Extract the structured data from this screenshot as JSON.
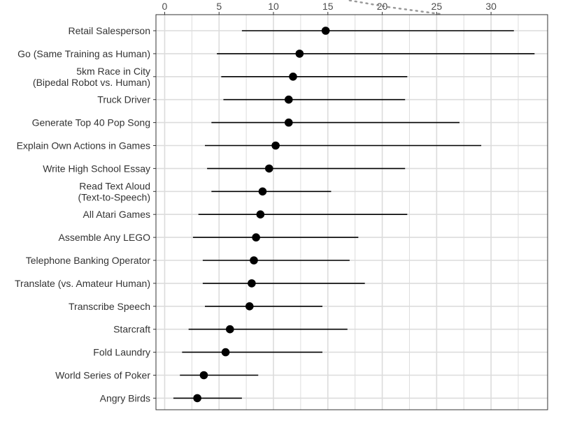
{
  "chart_data": {
    "type": "dot-interval",
    "title": "",
    "xlabel": "",
    "ylabel": "",
    "xlim": [
      -0.8,
      35.2
    ],
    "x_ticks": [
      0,
      5,
      10,
      15,
      20,
      25,
      30
    ],
    "grid": true,
    "legend": "none",
    "colors": {
      "point": "#000000",
      "interval": "#000000",
      "grid": "#dcdcdc",
      "frame": "#333333",
      "dotted": "#999999"
    },
    "annotation_dotted_line": [
      [
        17.0,
        35.4
      ],
      [
        20.6,
        33.8
      ],
      [
        25.5,
        32.1
      ]
    ],
    "rows": [
      {
        "label_lines": [
          "Retail Salesperson"
        ],
        "point": 14.8,
        "low": 7.1,
        "high": 32.1
      },
      {
        "label_lines": [
          "Go (Same Training as Human)"
        ],
        "point": 12.4,
        "low": 4.8,
        "high": 34.0
      },
      {
        "label_lines": [
          "5km Race in City",
          "(Bipedal Robot vs. Human)"
        ],
        "point": 11.8,
        "low": 5.2,
        "high": 22.3
      },
      {
        "label_lines": [
          "Truck Driver"
        ],
        "point": 11.4,
        "low": 5.4,
        "high": 22.1
      },
      {
        "label_lines": [
          "Generate Top 40 Pop Song"
        ],
        "point": 11.4,
        "low": 4.3,
        "high": 27.1
      },
      {
        "label_lines": [
          "Explain Own Actions in Games"
        ],
        "point": 10.2,
        "low": 3.7,
        "high": 29.1
      },
      {
        "label_lines": [
          "Write High School Essay"
        ],
        "point": 9.6,
        "low": 3.9,
        "high": 22.1
      },
      {
        "label_lines": [
          "Read Text Aloud",
          "(Text-to-Speech)"
        ],
        "point": 9.0,
        "low": 4.3,
        "high": 15.3
      },
      {
        "label_lines": [
          "All Atari Games"
        ],
        "point": 8.8,
        "low": 3.1,
        "high": 22.3
      },
      {
        "label_lines": [
          "Assemble Any LEGO"
        ],
        "point": 8.4,
        "low": 2.6,
        "high": 17.8
      },
      {
        "label_lines": [
          "Telephone Banking Operator"
        ],
        "point": 8.2,
        "low": 3.5,
        "high": 17.0
      },
      {
        "label_lines": [
          "Translate (vs. Amateur Human)"
        ],
        "point": 8.0,
        "low": 3.5,
        "high": 18.4
      },
      {
        "label_lines": [
          "Transcribe Speech"
        ],
        "point": 7.8,
        "low": 3.7,
        "high": 14.5
      },
      {
        "label_lines": [
          "Starcraft"
        ],
        "point": 6.0,
        "low": 2.2,
        "high": 16.8
      },
      {
        "label_lines": [
          "Fold Laundry"
        ],
        "point": 5.6,
        "low": 1.6,
        "high": 14.5
      },
      {
        "label_lines": [
          "World Series of Poker"
        ],
        "point": 3.6,
        "low": 1.4,
        "high": 8.6
      },
      {
        "label_lines": [
          "Angry Birds"
        ],
        "point": 3.0,
        "low": 0.8,
        "high": 7.1
      }
    ]
  }
}
